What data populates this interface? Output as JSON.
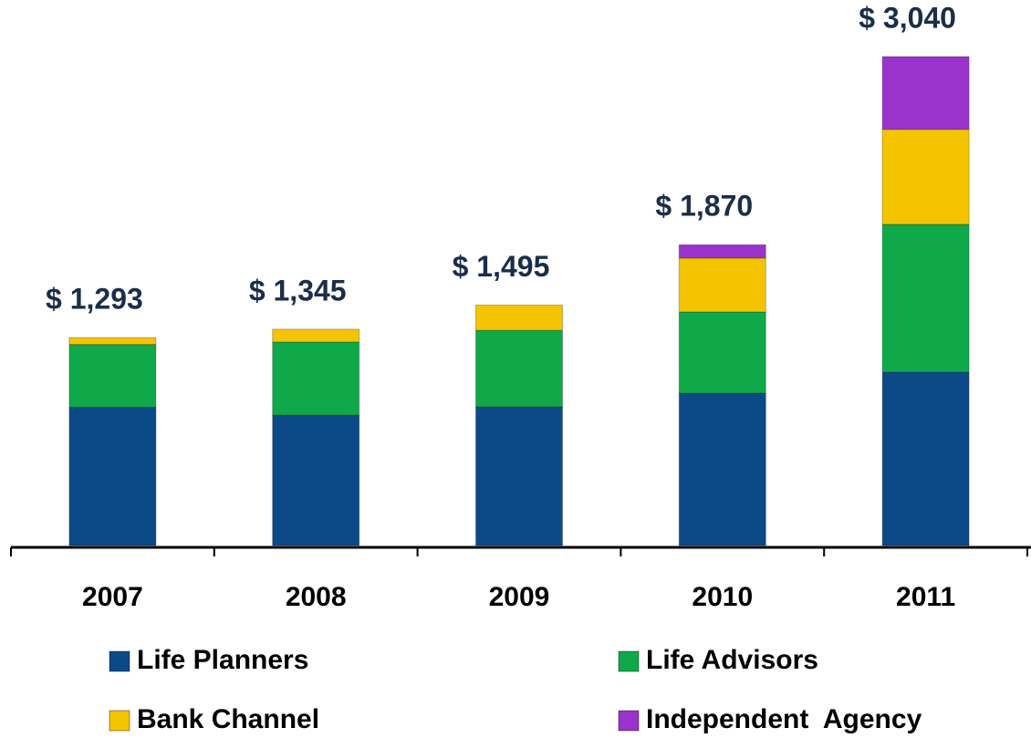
{
  "chart_data": {
    "type": "stacked-bar",
    "categories": [
      "2007",
      "2008",
      "2009",
      "2010",
      "2011"
    ],
    "series": [
      {
        "name": "Life Planners",
        "color": "#0b4a86",
        "values": [
          860,
          811,
          862,
          947,
          1078
        ]
      },
      {
        "name": "Life Advisors",
        "color": "#10a94a",
        "values": [
          390,
          454,
          476,
          505,
          919
        ]
      },
      {
        "name": "Bank Channel",
        "color": "#f5c400",
        "values": [
          43,
          80,
          157,
          335,
          590
        ]
      },
      {
        "name": "Independent  Agency",
        "color": "#9933cc",
        "values": [
          0,
          0,
          0,
          83,
          453
        ]
      }
    ],
    "totals": [
      1293,
      1345,
      1495,
      1870,
      3040
    ],
    "total_labels": [
      "$ 1,293",
      "$ 1,345",
      "$ 1,495",
      "$ 1,870",
      "$ 3,040"
    ]
  }
}
